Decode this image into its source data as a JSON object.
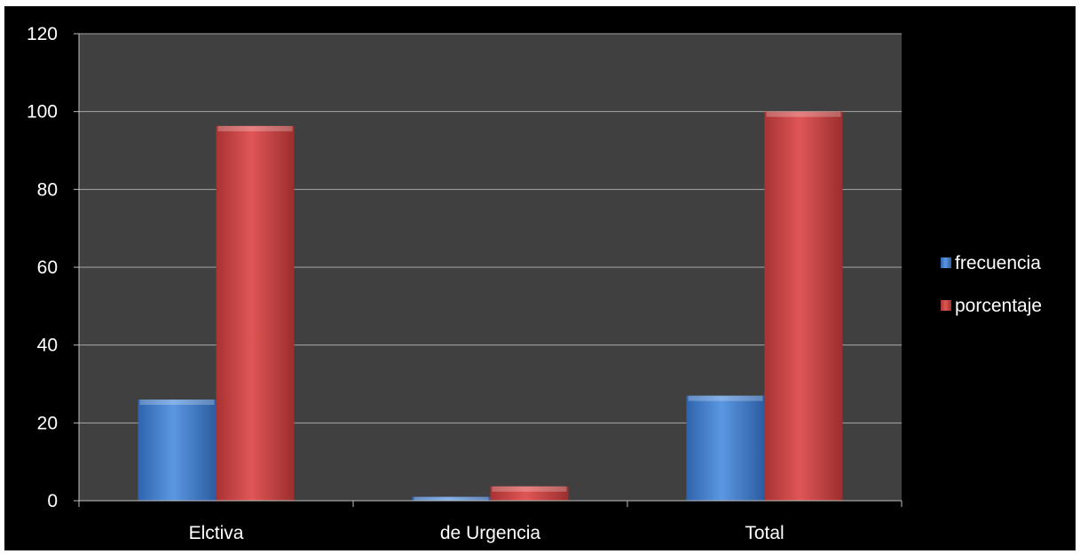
{
  "chart_data": {
    "type": "bar",
    "title": "",
    "xlabel": "",
    "ylabel": "",
    "categories": [
      "Elctiva",
      "de Urgencia",
      "Total"
    ],
    "series": [
      {
        "name": "frecuencia",
        "values": [
          26,
          1,
          27
        ]
      },
      {
        "name": "porcentaje",
        "values": [
          96.3,
          3.7,
          100
        ]
      }
    ],
    "ylim": [
      0,
      120
    ],
    "y_ticks": [
      0,
      20,
      40,
      60,
      80,
      100,
      120
    ],
    "grid": true,
    "legend_position": "right",
    "colors": {
      "frecuencia": "#4a86d4",
      "porcentaje": "#d64545",
      "plot_background": "#404040",
      "chart_background": "#000000",
      "gridline": "#a6a6a6",
      "text": "#ffffff"
    }
  }
}
